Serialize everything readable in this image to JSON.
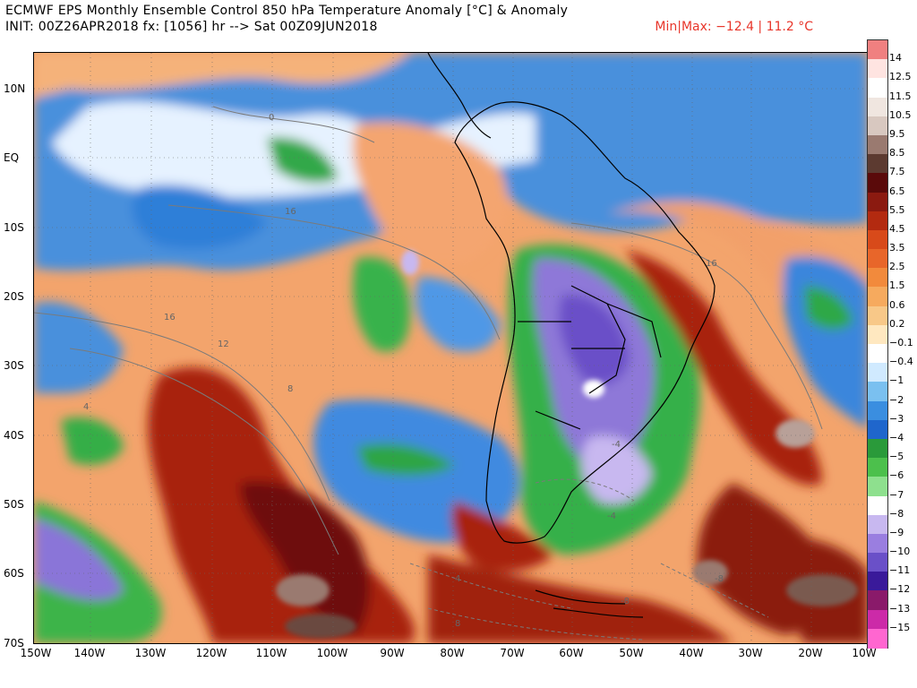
{
  "header": {
    "title": "ECMWF EPS Monthly Ensemble Control 850 hPa Temperature Anomaly [°C] & Anomaly",
    "init": "INIT: 00Z26APR2018 fx: [1056] hr --> Sat 00Z09JUN2018",
    "minmax": "Min|Max: −12.4 | 11.2 °C"
  },
  "map": {
    "region": "South America / South Pacific / South Atlantic",
    "lat_labels": [
      "10N",
      "EQ",
      "10S",
      "20S",
      "30S",
      "40S",
      "50S",
      "60S",
      "70S"
    ],
    "lon_labels": [
      "150W",
      "140W",
      "130W",
      "120W",
      "110W",
      "100W",
      "90W",
      "80W",
      "70W",
      "60W",
      "50W",
      "40W",
      "30W",
      "20W",
      "10W"
    ],
    "contour_labels": [
      "0",
      "16",
      "12",
      "8",
      "4",
      "-4",
      "16",
      "16",
      "-4",
      "-8",
      "-8",
      "4",
      "8"
    ]
  },
  "colorbar": {
    "labels": [
      "14",
      "12.5",
      "11.5",
      "10.5",
      "9.5",
      "8.5",
      "7.5",
      "6.5",
      "5.5",
      "4.5",
      "3.5",
      "2.5",
      "1.5",
      "0.6",
      "0.2",
      "−0.1",
      "−0.4",
      "−1",
      "−2",
      "−3",
      "−4",
      "−5",
      "−6",
      "−7",
      "−8",
      "−9",
      "−10",
      "−11",
      "−12",
      "−13",
      "−15"
    ],
    "colors": [
      "#f08080",
      "#ffe4e1",
      "#ffffff",
      "#f0e6e0",
      "#d8c8c0",
      "#9a7a70",
      "#5c3a30",
      "#5a0a0a",
      "#8b1a10",
      "#b32a10",
      "#d84a1a",
      "#e8662a",
      "#f28a3c",
      "#f6aa5e",
      "#f8c888",
      "#ffe8c0",
      "#ffffff",
      "#d0eaff",
      "#7ac0f0",
      "#3a8ee0",
      "#1f66cc",
      "#2a9a3a",
      "#4cc04c",
      "#8ee08e",
      "#ffffff",
      "#c8b8f0",
      "#9a7ee0",
      "#6a50c8",
      "#3a1a9a",
      "#8a1a6a",
      "#cc2aa8",
      "#ff66d0"
    ]
  }
}
